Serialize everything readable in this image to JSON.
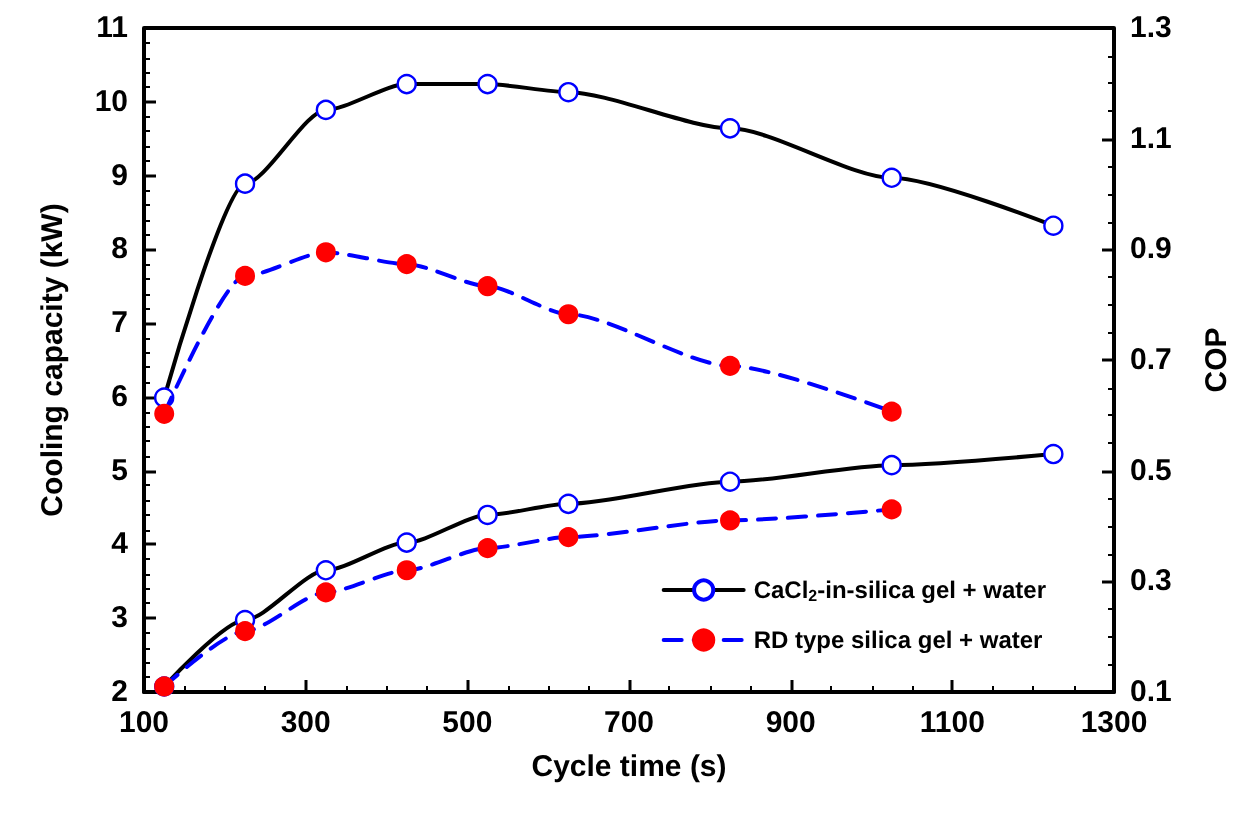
{
  "chart_data": {
    "type": "line",
    "xlabel": "Cycle time (s)",
    "ylabel": "Cooling capacity (kW)",
    "y2label": "COP",
    "xlim": [
      100,
      1300
    ],
    "xticks": [
      100,
      300,
      500,
      700,
      900,
      1100,
      1300
    ],
    "ylim": [
      2,
      11
    ],
    "yticks": [
      2,
      3,
      4,
      5,
      6,
      7,
      8,
      9,
      10,
      11
    ],
    "y2lim": [
      0.1,
      1.3
    ],
    "y2ticks": [
      0.1,
      0.3,
      0.5,
      0.7,
      0.9,
      1.1,
      1.3
    ],
    "grid": false,
    "legend": "bottom right",
    "marker": "circle",
    "series": [
      {
        "name": "CaCl$_{2}$-in-silica gel + water",
        "color": "#000000",
        "line_style": "solid",
        "x": [
          125,
          225,
          325,
          425,
          525,
          625,
          825,
          1025,
          1225
        ],
        "values": [
          5.99,
          8.89,
          9.89,
          10.24,
          10.24,
          10.13,
          9.64,
          8.97,
          8.32
        ]
      },
      {
        "name": "RD type silica gel + water",
        "color": "#0000ff",
        "line_style": "dashed",
        "x": [
          125,
          225,
          325,
          425,
          525,
          625,
          825,
          1025
        ],
        "values": [
          5.77,
          7.64,
          7.96,
          7.8,
          7.5,
          7.12,
          6.42,
          5.8
        ]
      },
      {
        "color": "#000000",
        "line_style": "solid",
        "axis": "y2",
        "x": [
          125,
          225,
          325,
          425,
          525,
          625,
          825,
          1025,
          1225
        ],
        "values": [
          0.11,
          0.23,
          0.32,
          0.37,
          0.42,
          0.44,
          0.48,
          0.51,
          0.53
        ]
      },
      {
        "color": "#0000ff",
        "line_style": "dashed",
        "axis": "y2",
        "x": [
          125,
          225,
          325,
          425,
          525,
          625,
          825,
          1025
        ],
        "values": [
          0.11,
          0.21,
          0.28,
          0.32,
          0.36,
          0.38,
          0.41,
          0.43
        ]
      }
    ]
  }
}
